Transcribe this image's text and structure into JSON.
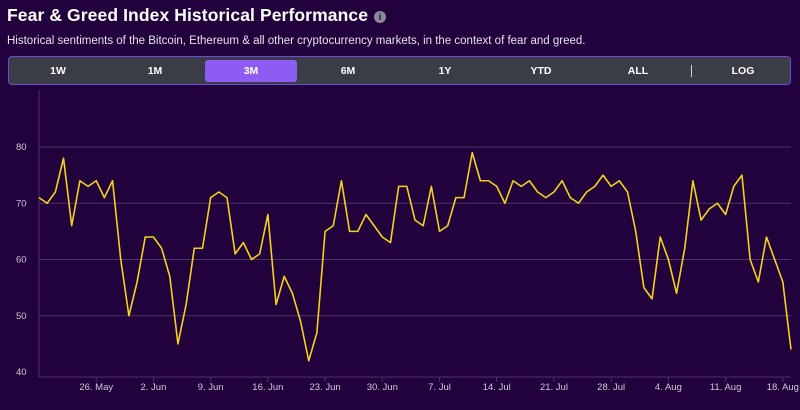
{
  "header": {
    "title": "Fear & Greed Index Historical Performance",
    "info_icon": "info-icon",
    "subtitle": "Historical sentiments of the Bitcoin, Ethereum & all other cryptocurrency markets, in the context of fear and greed."
  },
  "range_selector": {
    "options": [
      "1W",
      "1M",
      "3M",
      "6M",
      "1Y",
      "YTD",
      "ALL",
      "LOG"
    ],
    "selected": "3M"
  },
  "colors": {
    "background": "#22023d",
    "line": "#f2d31b",
    "grid": "#4a3366",
    "active_button": "#8c5cf5",
    "button_bar": "#3a3d45"
  },
  "chart_data": {
    "type": "line",
    "title": "",
    "xlabel": "",
    "ylabel": "",
    "ylim": [
      40,
      80
    ],
    "yticks": [
      40,
      50,
      60,
      70,
      80
    ],
    "grid": true,
    "x_ticks": [
      {
        "label": "26. May",
        "day": 7
      },
      {
        "label": "2. Jun",
        "day": 14
      },
      {
        "label": "9. Jun",
        "day": 21
      },
      {
        "label": "16. Jun",
        "day": 28
      },
      {
        "label": "23. Jun",
        "day": 35
      },
      {
        "label": "30. Jun",
        "day": 42
      },
      {
        "label": "7. Jul",
        "day": 49
      },
      {
        "label": "14. Jul",
        "day": 56
      },
      {
        "label": "21. Jul",
        "day": 63
      },
      {
        "label": "28. Jul",
        "day": 70
      },
      {
        "label": "4. Aug",
        "day": 77
      },
      {
        "label": "11. Aug",
        "day": 84
      },
      {
        "label": "18. Aug",
        "day": 91
      }
    ],
    "series": [
      {
        "name": "",
        "values": [
          71,
          70,
          72,
          78,
          66,
          74,
          73,
          74,
          71,
          74,
          60,
          50,
          56,
          64,
          64,
          62,
          57,
          45,
          52,
          62,
          62,
          71,
          72,
          71,
          61,
          63,
          60,
          61,
          68,
          52,
          57,
          54,
          49,
          42,
          47,
          65,
          66,
          74,
          65,
          65,
          68,
          66,
          64,
          63,
          73,
          73,
          67,
          66,
          73,
          65,
          66,
          71,
          71,
          79,
          74,
          74,
          73,
          70,
          74,
          73,
          74,
          72,
          71,
          72,
          74,
          71,
          70,
          72,
          73,
          75,
          73,
          74,
          72,
          65,
          55,
          53,
          64,
          60,
          54,
          62,
          74,
          67,
          69,
          70,
          68,
          73,
          75,
          60,
          56,
          64,
          60,
          56,
          44
        ]
      }
    ]
  }
}
